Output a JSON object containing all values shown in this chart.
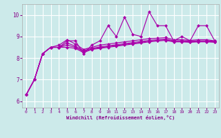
{
  "xlabel": "Windchill (Refroidissement éolien,°C)",
  "bg_color": "#cceaea",
  "line_color": "#aa00aa",
  "xlim": [
    -0.5,
    23.5
  ],
  "ylim": [
    5.7,
    10.5
  ],
  "yticks": [
    6,
    7,
    8,
    9,
    10
  ],
  "xticks": [
    0,
    1,
    2,
    3,
    4,
    5,
    6,
    7,
    8,
    9,
    10,
    11,
    12,
    13,
    14,
    15,
    16,
    17,
    18,
    19,
    20,
    21,
    22,
    23
  ],
  "series": [
    [
      6.3,
      7.0,
      8.2,
      8.5,
      8.5,
      8.8,
      8.8,
      8.2,
      8.6,
      8.8,
      9.5,
      9.0,
      9.9,
      9.1,
      9.0,
      10.15,
      9.5,
      9.5,
      8.8,
      9.0,
      8.8,
      9.5,
      9.5,
      8.8
    ],
    [
      6.3,
      7.0,
      8.2,
      8.5,
      8.6,
      8.85,
      8.65,
      8.4,
      8.5,
      8.6,
      8.65,
      8.7,
      8.75,
      8.8,
      8.85,
      8.9,
      8.92,
      8.95,
      8.85,
      8.85,
      8.82,
      8.85,
      8.85,
      8.8
    ],
    [
      6.3,
      7.0,
      8.2,
      8.5,
      8.5,
      8.7,
      8.55,
      8.35,
      8.45,
      8.52,
      8.57,
      8.62,
      8.67,
      8.72,
      8.77,
      8.82,
      8.85,
      8.88,
      8.8,
      8.8,
      8.78,
      8.8,
      8.8,
      8.78
    ],
    [
      6.3,
      7.0,
      8.2,
      8.5,
      8.5,
      8.6,
      8.5,
      8.3,
      8.42,
      8.48,
      8.53,
      8.58,
      8.63,
      8.68,
      8.73,
      8.78,
      8.82,
      8.85,
      8.77,
      8.77,
      8.75,
      8.77,
      8.77,
      8.75
    ],
    [
      6.3,
      7.0,
      8.2,
      8.5,
      8.5,
      8.5,
      8.45,
      8.25,
      8.4,
      8.45,
      8.5,
      8.55,
      8.6,
      8.65,
      8.7,
      8.75,
      8.79,
      8.82,
      8.75,
      8.75,
      8.73,
      8.75,
      8.75,
      8.73
    ]
  ]
}
